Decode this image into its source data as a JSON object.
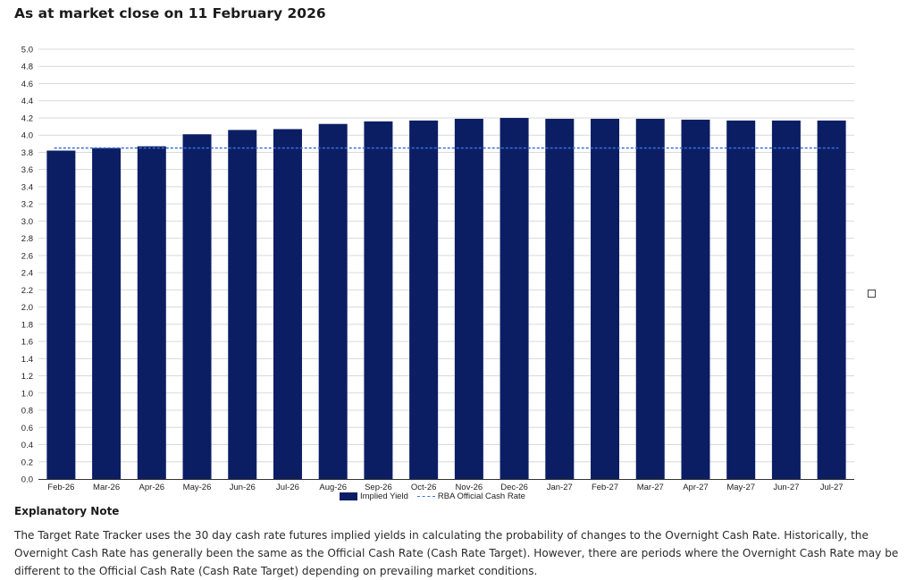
{
  "page": {
    "title": "As at market close on 11 February 2026"
  },
  "chart_data": {
    "type": "bar",
    "title": "",
    "xlabel": "",
    "ylabel": "",
    "categories": [
      "Feb-26",
      "Mar-26",
      "Apr-26",
      "May-26",
      "Jun-26",
      "Jul-26",
      "Aug-26",
      "Sep-26",
      "Oct-26",
      "Nov-26",
      "Dec-26",
      "Jan-27",
      "Feb-27",
      "Mar-27",
      "Apr-27",
      "May-27",
      "Jun-27",
      "Jul-27"
    ],
    "series": [
      {
        "name": "Implied Yield",
        "type": "bar",
        "color": "#0b1e64",
        "values": [
          3.82,
          3.85,
          3.87,
          4.01,
          4.06,
          4.07,
          4.13,
          4.16,
          4.17,
          4.19,
          4.2,
          4.19,
          4.19,
          4.19,
          4.18,
          4.17,
          4.17,
          4.17
        ]
      },
      {
        "name": "RBA Official Cash Rate",
        "type": "line",
        "style": "dashed",
        "color": "#3a6fd8",
        "values": [
          3.85,
          3.85,
          3.85,
          3.85,
          3.85,
          3.85,
          3.85,
          3.85,
          3.85,
          3.85,
          3.85,
          3.85,
          3.85,
          3.85,
          3.85,
          3.85,
          3.85,
          3.85
        ]
      }
    ],
    "ylim": [
      0,
      5.0
    ],
    "yticks": [
      "0.0",
      "0.2",
      "0.4",
      "0.6",
      "0.8",
      "1.0",
      "1.2",
      "1.4",
      "1.6",
      "1.8",
      "2.0",
      "2.2",
      "2.4",
      "2.6",
      "2.8",
      "3.0",
      "3.2",
      "3.4",
      "3.6",
      "3.8",
      "4.0",
      "4.2",
      "4.4",
      "4.6",
      "4.8",
      "5.0"
    ],
    "grid": true,
    "legend": "bottom-center"
  },
  "legend": {
    "bar_label": "Implied Yield",
    "line_label": "RBA Official Cash Rate"
  },
  "note": {
    "heading": "Explanatory Note",
    "body": "The Target Rate Tracker uses the 30 day cash rate futures implied yields in calculating the probability of changes to the Overnight Cash Rate. Historically, the Overnight Cash Rate has generally been the same as the Official Cash Rate (Cash Rate Target). However, there are periods where the Overnight Cash Rate may be different to the Official Cash Rate (Cash Rate Target) depending on prevailing market conditions."
  }
}
